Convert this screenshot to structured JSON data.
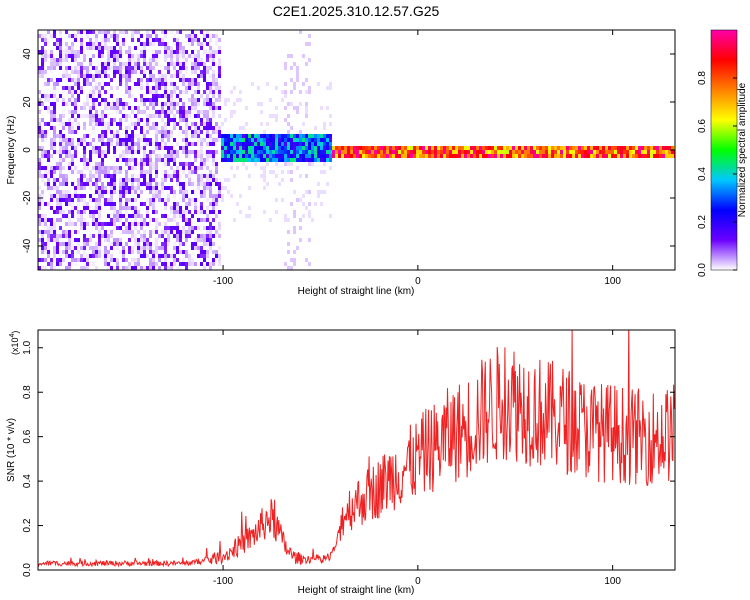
{
  "title": "C2E1.2025.310.12.57.G25",
  "chart_data": [
    {
      "type": "heatmap",
      "title": "C2E1.2025.310.12.57.G25",
      "xlabel": "Height of straight line (km)",
      "ylabel": "Frequency (Hz)",
      "xlim": [
        -195,
        132
      ],
      "ylim": [
        -50,
        50
      ],
      "x_ticks": [
        -100,
        0,
        100
      ],
      "x_tick_labels": [
        "-100",
        "0",
        "100"
      ],
      "y_ticks": [
        -40,
        -20,
        0,
        20,
        40
      ],
      "y_tick_labels": [
        "-40",
        "-20",
        "0",
        "20",
        "40"
      ],
      "description_regions": [
        {
          "x_range": [
            -195,
            -102
          ],
          "freq_range": [
            -50,
            50
          ],
          "amplitude": [
            0.0,
            0.15
          ]
        },
        {
          "x_range": [
            -102,
            -45
          ],
          "freq_range": [
            -5,
            8
          ],
          "amplitude": [
            0.15,
            0.45
          ]
        },
        {
          "x_range": [
            -45,
            132
          ],
          "freq_range": [
            -2,
            3
          ],
          "amplitude": [
            0.6,
            1.0
          ]
        }
      ],
      "colorbar": {
        "label": "Normalized spectral amplitude",
        "range": [
          0,
          1
        ],
        "ticks": [
          0.0,
          0.2,
          0.4,
          0.6,
          0.8
        ],
        "tick_labels": [
          "0.0",
          "0.2",
          "0.4",
          "0.6",
          "0.8"
        ],
        "colormap": "rainbow",
        "stops": [
          "#ffffff",
          "#6a00ff",
          "#0000ff",
          "#00c8ff",
          "#00ff00",
          "#ffff00",
          "#ff8000",
          "#ff0000",
          "#ff00aa"
        ]
      }
    },
    {
      "type": "line",
      "xlabel": "Height of straight line (km)",
      "ylabel": "SNR (10 * v/v)",
      "y_scale_label": "(x10",
      "y_scale_exponent": "4",
      "y_scale_close": ")",
      "xlim": [
        -195,
        132
      ],
      "ylim": [
        0,
        1.08
      ],
      "x_ticks": [
        -100,
        0,
        100
      ],
      "x_tick_labels": [
        "-100",
        "0",
        "100"
      ],
      "y_ticks": [
        0.0,
        0.2,
        0.4,
        0.6,
        0.8,
        1.0
      ],
      "y_tick_labels": [
        "0.0",
        "0.2",
        "0.4",
        "0.6",
        "0.8",
        "1.0"
      ],
      "color": "#ee2222",
      "series": [
        {
          "name": "SNR",
          "x": [
            -195,
            -180,
            -160,
            -140,
            -120,
            -110,
            -100,
            -95,
            -90,
            -85,
            -80,
            -76,
            -72,
            -70,
            -67,
            -64,
            -60,
            -55,
            -50,
            -45,
            -42,
            -40,
            -38,
            -35,
            -32,
            -30,
            -25,
            -20,
            -15,
            -10,
            -5,
            0,
            5,
            10,
            15,
            20,
            25,
            30,
            35,
            40,
            45,
            50,
            55,
            60,
            65,
            70,
            75,
            80,
            85,
            90,
            95,
            100,
            105,
            110,
            115,
            120,
            125,
            132
          ],
          "y": [
            0.03,
            0.03,
            0.03,
            0.03,
            0.03,
            0.04,
            0.06,
            0.09,
            0.12,
            0.15,
            0.2,
            0.24,
            0.19,
            0.14,
            0.09,
            0.06,
            0.05,
            0.05,
            0.05,
            0.06,
            0.11,
            0.2,
            0.25,
            0.28,
            0.3,
            0.31,
            0.34,
            0.37,
            0.41,
            0.44,
            0.47,
            0.5,
            0.54,
            0.56,
            0.6,
            0.62,
            0.64,
            0.68,
            0.72,
            0.74,
            0.77,
            0.76,
            0.74,
            0.72,
            0.7,
            0.69,
            0.68,
            0.66,
            0.64,
            0.63,
            0.62,
            0.62,
            0.61,
            0.6,
            0.6,
            0.6,
            0.6,
            0.62
          ]
        }
      ]
    }
  ]
}
